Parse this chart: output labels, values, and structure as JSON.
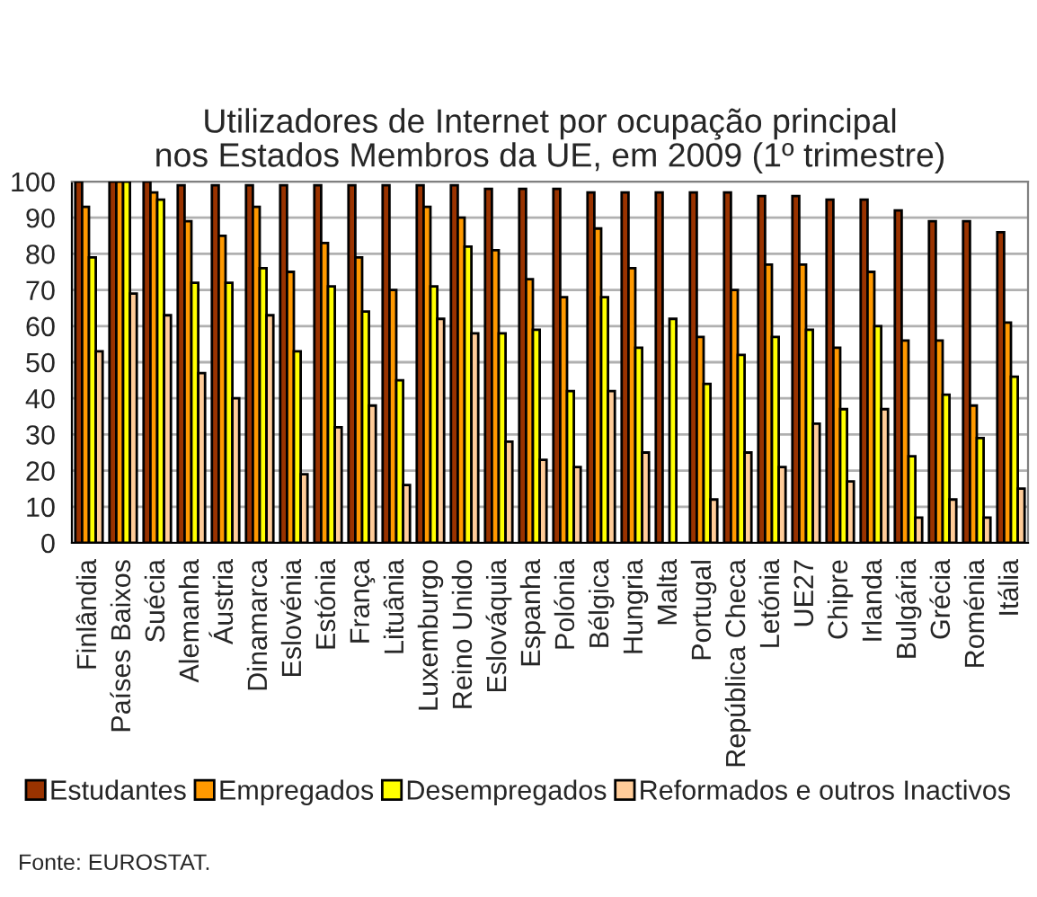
{
  "chart_data": {
    "type": "bar",
    "title": "Utilizadores de Internet por ocupação principal\nnos Estados Membros da UE, em 2009 (1º trimestre)",
    "categories": [
      "Finlândia",
      "Países Baixos",
      "Suécia",
      "Alemanha",
      "Áustria",
      "Dinamarca",
      "Eslovénia",
      "Estónia",
      "França",
      "Lituânia",
      "Luxemburgo",
      "Reino Unido",
      "Eslováquia",
      "Espanha",
      "Polónia",
      "Bélgica",
      "Hungria",
      "Malta",
      "Portugal",
      "República Checa",
      "Letónia",
      "UE27",
      "Chipre",
      "Irlanda",
      "Bulgária",
      "Grécia",
      "Roménia",
      "Itália"
    ],
    "series": [
      {
        "name": "Estudantes",
        "color": "#993300",
        "values": [
          100,
          100,
          100,
          99,
          99,
          99,
          99,
          99,
          99,
          99,
          99,
          99,
          98,
          98,
          98,
          97,
          97,
          97,
          97,
          97,
          96,
          96,
          95,
          95,
          92,
          89,
          89,
          86
        ]
      },
      {
        "name": "Empregados",
        "color": "#ff9900",
        "values": [
          93,
          100,
          97,
          89,
          85,
          93,
          75,
          83,
          79,
          70,
          93,
          90,
          81,
          73,
          68,
          87,
          76,
          null,
          57,
          70,
          77,
          77,
          54,
          75,
          56,
          56,
          38,
          61
        ]
      },
      {
        "name": "Desempregados",
        "color": "#ffff00",
        "values": [
          79,
          100,
          95,
          72,
          72,
          76,
          53,
          71,
          64,
          45,
          71,
          82,
          58,
          59,
          42,
          68,
          54,
          62,
          44,
          52,
          57,
          59,
          37,
          60,
          24,
          41,
          29,
          46
        ]
      },
      {
        "name": "Reformados e outros Inactivos",
        "color": "#ffcc99",
        "values": [
          53,
          69,
          63,
          47,
          40,
          63,
          19,
          32,
          38,
          16,
          62,
          58,
          28,
          23,
          21,
          42,
          25,
          null,
          12,
          25,
          21,
          33,
          17,
          37,
          7,
          12,
          7,
          15
        ]
      }
    ],
    "ylim": [
      0,
      100
    ],
    "yticks": [
      0,
      10,
      20,
      30,
      40,
      50,
      60,
      70,
      80,
      90,
      100
    ],
    "grid": "y",
    "legend": "bottom",
    "annotations": [
      "Fonte: EUROSTAT."
    ]
  }
}
